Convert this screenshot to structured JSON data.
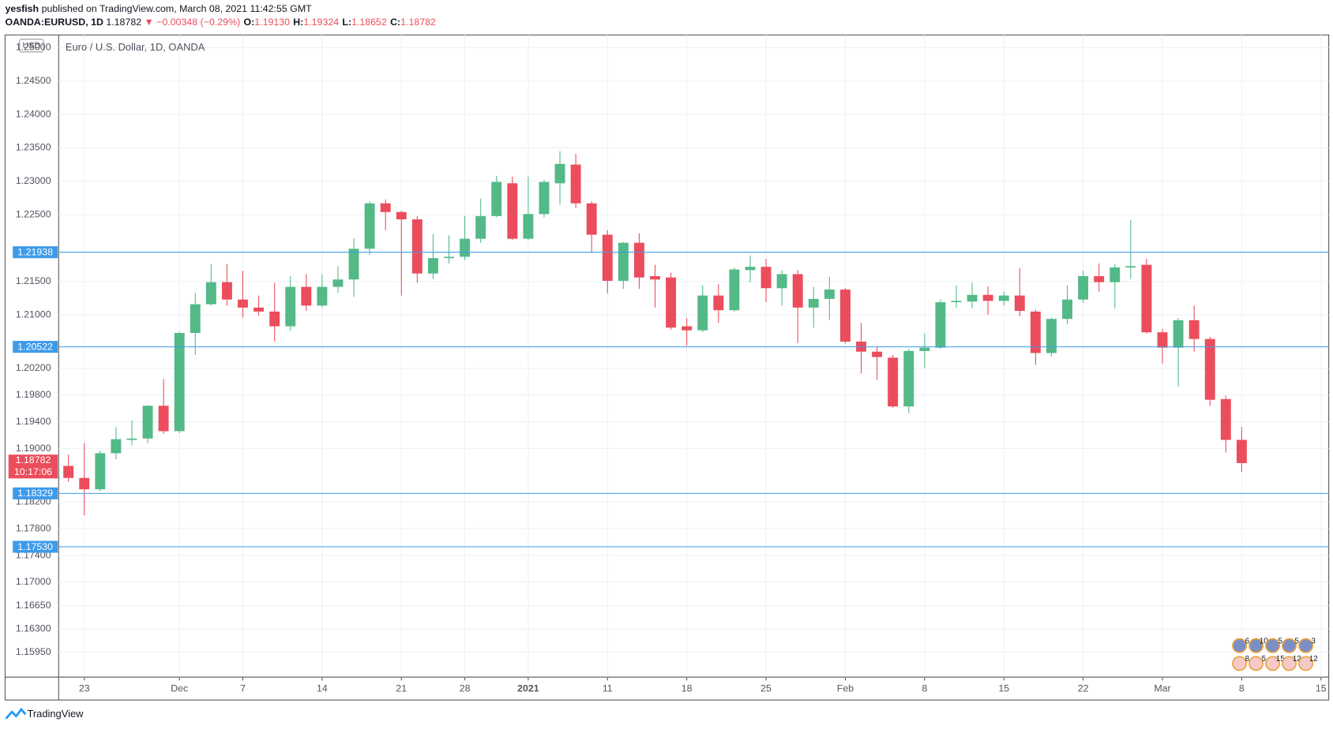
{
  "header": {
    "publisher": "yesfish",
    "published": "published on TradingView.com, March 08, 2021 11:42:55 GMT",
    "symbol": "OANDA:EURUSD, 1D",
    "price": "1.18782",
    "change": "▼ −0.00348 (−0.29%)",
    "ohlc": [
      {
        "label": "O:",
        "value": "1.19130"
      },
      {
        "label": "H:",
        "value": "1.19324"
      },
      {
        "label": "L:",
        "value": "1.18652"
      },
      {
        "label": "C:",
        "value": "1.18782"
      }
    ]
  },
  "chart_data": {
    "type": "candlestick",
    "title": "Euro / U.S. Dollar, 1D, OANDA",
    "currency": "USD",
    "up_color": "#53b987",
    "down_color": "#eb4d5c",
    "line_color": "#3d9be9",
    "grid": true,
    "categories": [
      null,
      "23",
      null,
      null,
      null,
      null,
      null,
      "Dec",
      null,
      null,
      null,
      "7",
      null,
      null,
      null,
      null,
      "14",
      null,
      null,
      null,
      null,
      "21",
      null,
      null,
      null,
      "28",
      null,
      null,
      null,
      "2021",
      null,
      null,
      null,
      null,
      "11",
      null,
      null,
      null,
      null,
      "18",
      null,
      null,
      null,
      null,
      "25",
      null,
      null,
      null,
      null,
      "Feb",
      null,
      null,
      null,
      null,
      "8",
      null,
      null,
      null,
      null,
      "15",
      null,
      null,
      null,
      null,
      "22",
      null,
      null,
      null,
      null,
      "Mar",
      null,
      null,
      null,
      null,
      "8",
      null,
      null,
      null,
      null,
      "15"
    ],
    "open": [
      1.1874,
      1.1856,
      1.1839,
      1.1893,
      1.1913,
      1.1915,
      1.1964,
      1.1926,
      1.2073,
      1.2116,
      1.2149,
      1.2123,
      1.2111,
      1.2105,
      1.2083,
      1.2142,
      1.2114,
      1.2142,
      1.2153,
      1.2199,
      1.2267,
      1.2254,
      1.2243,
      1.2162,
      1.2185,
      1.2187,
      1.2214,
      1.2248,
      1.2297,
      1.2214,
      1.2251,
      1.2297,
      1.2325,
      1.2267,
      1.222,
      1.2151,
      1.2208,
      1.2158,
      1.2156,
      1.2083,
      1.2077,
      1.2129,
      1.2107,
      1.2167,
      1.2172,
      1.214,
      1.2161,
      1.2111,
      1.2124,
      1.2138,
      1.206,
      1.2045,
      1.2036,
      1.1963,
      1.2046,
      1.2051,
      1.2119,
      1.212,
      1.213,
      1.2121,
      1.2129,
      1.2105,
      1.2043,
      1.2094,
      1.2123,
      1.2158,
      1.2149,
      1.2171,
      1.2175,
      1.2074,
      1.2051,
      1.2092,
      1.2064,
      1.1974,
      1.1913,
      null,
      null,
      null,
      null,
      null
    ],
    "high": [
      1.1891,
      1.1908,
      1.1897,
      1.1932,
      1.1942,
      1.1965,
      1.2004,
      1.2075,
      1.2133,
      1.2176,
      1.2176,
      1.2166,
      1.2129,
      1.2148,
      1.2158,
      1.2161,
      1.2161,
      1.2173,
      1.2215,
      1.227,
      1.2273,
      1.2256,
      1.2248,
      1.2221,
      1.2219,
      1.2248,
      1.2274,
      1.2308,
      1.2307,
      1.2307,
      1.2302,
      1.2345,
      1.2341,
      1.227,
      1.2227,
      1.2209,
      1.2222,
      1.2175,
      1.2163,
      1.2095,
      1.2144,
      1.2146,
      1.2171,
      1.2189,
      1.2184,
      1.2167,
      1.2167,
      1.2142,
      1.2157,
      1.214,
      1.2088,
      1.2053,
      1.204,
      1.2049,
      1.2072,
      1.2123,
      1.2144,
      1.2148,
      1.2143,
      1.2135,
      1.217,
      1.2108,
      1.2096,
      1.2144,
      1.2166,
      1.2177,
      1.2176,
      1.2242,
      1.2184,
      1.2079,
      1.2095,
      1.2114,
      1.2067,
      1.1979,
      1.19324,
      null,
      null,
      null,
      null,
      null
    ],
    "low": [
      1.185,
      1.18,
      1.1836,
      1.1884,
      1.1905,
      1.1908,
      1.1922,
      1.1923,
      1.204,
      1.2114,
      1.2114,
      1.2096,
      1.2099,
      1.206,
      1.2076,
      1.2106,
      1.2111,
      1.2133,
      1.2127,
      1.219,
      1.2227,
      1.2129,
      1.2148,
      1.2154,
      1.2177,
      1.2182,
      1.2208,
      1.2246,
      1.2212,
      1.2212,
      1.2246,
      1.2265,
      1.226,
      1.2194,
      1.2132,
      1.2139,
      1.2139,
      1.2111,
      1.2078,
      1.2054,
      1.2074,
      1.2088,
      1.2105,
      1.2149,
      1.2119,
      1.2114,
      1.2058,
      1.2081,
      1.2092,
      1.2057,
      1.2012,
      1.2003,
      1.1961,
      1.1953,
      1.2021,
      1.2049,
      1.2111,
      1.211,
      1.21,
      1.2114,
      1.2098,
      1.2025,
      1.2038,
      1.2086,
      1.2118,
      1.2135,
      1.211,
      1.2154,
      1.2072,
      1.2027,
      1.1993,
      1.2045,
      1.1964,
      1.1894,
      1.18652,
      null,
      null,
      null,
      null,
      null
    ],
    "close": [
      1.1856,
      1.1839,
      1.1893,
      1.1914,
      1.1915,
      1.1964,
      1.1926,
      1.2073,
      1.2116,
      1.2149,
      1.2123,
      1.2111,
      1.2105,
      1.2083,
      1.2142,
      1.2114,
      1.2142,
      1.2153,
      1.2199,
      1.2267,
      1.2254,
      1.2243,
      1.2162,
      1.2185,
      1.2187,
      1.2214,
      1.2248,
      1.2299,
      1.2214,
      1.2251,
      1.2299,
      1.2326,
      1.2267,
      1.222,
      1.2151,
      1.2208,
      1.2156,
      1.2153,
      1.2081,
      1.2077,
      1.2129,
      1.2107,
      1.2168,
      1.2172,
      1.214,
      1.2161,
      1.2111,
      1.2124,
      1.2138,
      1.206,
      1.2045,
      1.2037,
      1.1963,
      1.2046,
      1.2051,
      1.2119,
      1.2121,
      1.213,
      1.2121,
      1.2129,
      1.2106,
      1.2043,
      1.2094,
      1.2123,
      1.2158,
      1.2149,
      1.2171,
      1.2173,
      1.2074,
      1.2051,
      1.2092,
      1.2064,
      1.1973,
      1.1913,
      1.18782,
      null,
      null,
      null,
      null,
      null
    ],
    "ylim": [
      1.1558,
      1.2519
    ],
    "yticks": [
      {
        "value": 1.25,
        "label": "1.25000"
      },
      {
        "value": 1.245,
        "label": "1.24500"
      },
      {
        "value": 1.24,
        "label": "1.24000"
      },
      {
        "value": 1.235,
        "label": "1.23500"
      },
      {
        "value": 1.23,
        "label": "1.23000"
      },
      {
        "value": 1.225,
        "label": "1.22500"
      },
      {
        "value": 1.215,
        "label": "1.21500"
      },
      {
        "value": 1.21,
        "label": "1.21000"
      },
      {
        "value": 1.202,
        "label": "1.20200"
      },
      {
        "value": 1.198,
        "label": "1.19800"
      },
      {
        "value": 1.194,
        "label": "1.19400"
      },
      {
        "value": 1.19,
        "label": "1.19000"
      },
      {
        "value": 1.182,
        "label": "1.18200"
      },
      {
        "value": 1.178,
        "label": "1.17800"
      },
      {
        "value": 1.174,
        "label": "1.17400"
      },
      {
        "value": 1.17,
        "label": "1.17000"
      },
      {
        "value": 1.1665,
        "label": "1.16650"
      },
      {
        "value": 1.163,
        "label": "1.16300"
      },
      {
        "value": 1.1595,
        "label": "1.15950"
      }
    ],
    "hlines": [
      1.21938,
      1.20522,
      1.18329,
      {
        "value": 1.1753,
        "label": "1.17530"
      }
    ],
    "last": {
      "value": 1.18782,
      "countdown": "10:17:06"
    },
    "events": [
      [
        "6",
        "10",
        "5",
        "5",
        "3"
      ],
      [
        "8",
        "5",
        "15",
        "12",
        "12"
      ]
    ]
  },
  "footer": {
    "logo": "TradingView"
  }
}
